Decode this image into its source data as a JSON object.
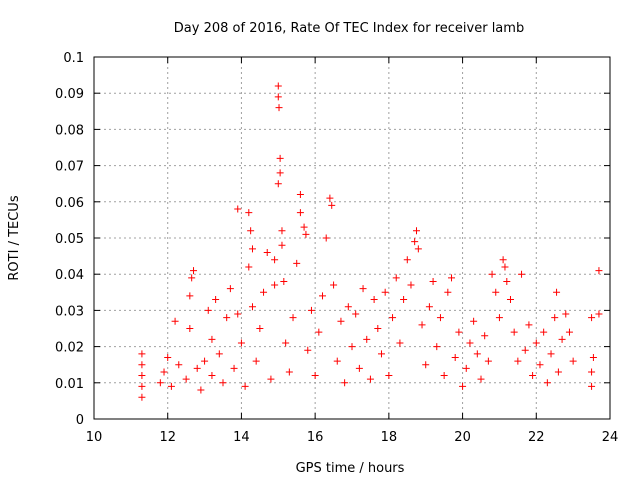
{
  "chart_data": {
    "type": "scatter",
    "title": "Day 208 of 2016, Rate Of TEC Index for receiver lamb",
    "xlabel": "GPS time / hours",
    "ylabel": "ROTI / TECUs",
    "xlim": [
      10,
      24
    ],
    "ylim": [
      0,
      0.1
    ],
    "x_ticks": [
      "10",
      "12",
      "14",
      "16",
      "18",
      "20",
      "22",
      "24"
    ],
    "y_ticks": [
      "0",
      "0.01",
      "0.02",
      "0.03",
      "0.04",
      "0.05",
      "0.06",
      "0.07",
      "0.08",
      "0.09",
      "0.1"
    ],
    "grid": true,
    "marker": "plus",
    "color": "#ff0000",
    "series": [
      {
        "points": [
          [
            11.3,
            0.006
          ],
          [
            11.3,
            0.009
          ],
          [
            11.3,
            0.012
          ],
          [
            11.3,
            0.015
          ],
          [
            11.3,
            0.018
          ],
          [
            11.8,
            0.01
          ],
          [
            11.9,
            0.013
          ],
          [
            12.0,
            0.017
          ],
          [
            12.1,
            0.009
          ],
          [
            12.2,
            0.027
          ],
          [
            12.3,
            0.015
          ],
          [
            12.5,
            0.011
          ],
          [
            12.6,
            0.025
          ],
          [
            12.6,
            0.034
          ],
          [
            12.65,
            0.039
          ],
          [
            12.7,
            0.041
          ],
          [
            12.8,
            0.014
          ],
          [
            12.9,
            0.008
          ],
          [
            13.0,
            0.016
          ],
          [
            13.1,
            0.03
          ],
          [
            13.2,
            0.022
          ],
          [
            13.2,
            0.012
          ],
          [
            13.3,
            0.033
          ],
          [
            13.4,
            0.018
          ],
          [
            13.5,
            0.01
          ],
          [
            13.6,
            0.028
          ],
          [
            13.7,
            0.036
          ],
          [
            13.8,
            0.014
          ],
          [
            13.9,
            0.029
          ],
          [
            13.9,
            0.058
          ],
          [
            14.0,
            0.021
          ],
          [
            14.1,
            0.009
          ],
          [
            14.2,
            0.042
          ],
          [
            14.2,
            0.057
          ],
          [
            14.25,
            0.052
          ],
          [
            14.3,
            0.047
          ],
          [
            14.3,
            0.031
          ],
          [
            14.4,
            0.016
          ],
          [
            14.5,
            0.025
          ],
          [
            14.6,
            0.035
          ],
          [
            14.7,
            0.046
          ],
          [
            14.8,
            0.011
          ],
          [
            14.9,
            0.037
          ],
          [
            14.9,
            0.044
          ],
          [
            15.0,
            0.092
          ],
          [
            15.0,
            0.089
          ],
          [
            15.02,
            0.086
          ],
          [
            15.05,
            0.072
          ],
          [
            15.05,
            0.068
          ],
          [
            15.0,
            0.065
          ],
          [
            15.1,
            0.052
          ],
          [
            15.1,
            0.048
          ],
          [
            15.15,
            0.038
          ],
          [
            15.2,
            0.021
          ],
          [
            15.3,
            0.013
          ],
          [
            15.4,
            0.028
          ],
          [
            15.5,
            0.043
          ],
          [
            15.6,
            0.062
          ],
          [
            15.6,
            0.057
          ],
          [
            15.7,
            0.053
          ],
          [
            15.75,
            0.051
          ],
          [
            15.8,
            0.019
          ],
          [
            15.9,
            0.03
          ],
          [
            16.0,
            0.012
          ],
          [
            16.1,
            0.024
          ],
          [
            16.2,
            0.034
          ],
          [
            16.3,
            0.05
          ],
          [
            16.4,
            0.061
          ],
          [
            16.45,
            0.059
          ],
          [
            16.5,
            0.037
          ],
          [
            16.6,
            0.016
          ],
          [
            16.7,
            0.027
          ],
          [
            16.8,
            0.01
          ],
          [
            16.9,
            0.031
          ],
          [
            17.0,
            0.02
          ],
          [
            17.1,
            0.029
          ],
          [
            17.2,
            0.014
          ],
          [
            17.3,
            0.036
          ],
          [
            17.4,
            0.022
          ],
          [
            17.5,
            0.011
          ],
          [
            17.6,
            0.033
          ],
          [
            17.7,
            0.025
          ],
          [
            17.8,
            0.018
          ],
          [
            17.9,
            0.035
          ],
          [
            18.0,
            0.012
          ],
          [
            18.1,
            0.028
          ],
          [
            18.2,
            0.039
          ],
          [
            18.3,
            0.021
          ],
          [
            18.4,
            0.033
          ],
          [
            18.5,
            0.044
          ],
          [
            18.6,
            0.037
          ],
          [
            18.7,
            0.049
          ],
          [
            18.75,
            0.052
          ],
          [
            18.8,
            0.047
          ],
          [
            18.9,
            0.026
          ],
          [
            19.0,
            0.015
          ],
          [
            19.1,
            0.031
          ],
          [
            19.2,
            0.038
          ],
          [
            19.3,
            0.02
          ],
          [
            19.4,
            0.028
          ],
          [
            19.5,
            0.012
          ],
          [
            19.6,
            0.035
          ],
          [
            19.7,
            0.039
          ],
          [
            19.8,
            0.017
          ],
          [
            19.9,
            0.024
          ],
          [
            20.0,
            0.009
          ],
          [
            20.1,
            0.014
          ],
          [
            20.2,
            0.021
          ],
          [
            20.3,
            0.027
          ],
          [
            20.4,
            0.018
          ],
          [
            20.5,
            0.011
          ],
          [
            20.6,
            0.023
          ],
          [
            20.7,
            0.016
          ],
          [
            20.8,
            0.04
          ],
          [
            20.9,
            0.035
          ],
          [
            21.0,
            0.028
          ],
          [
            21.1,
            0.044
          ],
          [
            21.15,
            0.042
          ],
          [
            21.2,
            0.038
          ],
          [
            21.3,
            0.033
          ],
          [
            21.4,
            0.024
          ],
          [
            21.5,
            0.016
          ],
          [
            21.6,
            0.04
          ],
          [
            21.7,
            0.019
          ],
          [
            21.8,
            0.026
          ],
          [
            21.9,
            0.012
          ],
          [
            22.0,
            0.021
          ],
          [
            22.1,
            0.015
          ],
          [
            22.2,
            0.024
          ],
          [
            22.3,
            0.01
          ],
          [
            22.4,
            0.018
          ],
          [
            22.5,
            0.028
          ],
          [
            22.55,
            0.035
          ],
          [
            22.6,
            0.013
          ],
          [
            22.7,
            0.022
          ],
          [
            22.8,
            0.029
          ],
          [
            22.9,
            0.024
          ],
          [
            23.0,
            0.016
          ],
          [
            23.5,
            0.009
          ],
          [
            23.5,
            0.013
          ],
          [
            23.55,
            0.017
          ],
          [
            23.5,
            0.028
          ],
          [
            23.7,
            0.029
          ],
          [
            23.7,
            0.041
          ]
        ]
      }
    ]
  }
}
